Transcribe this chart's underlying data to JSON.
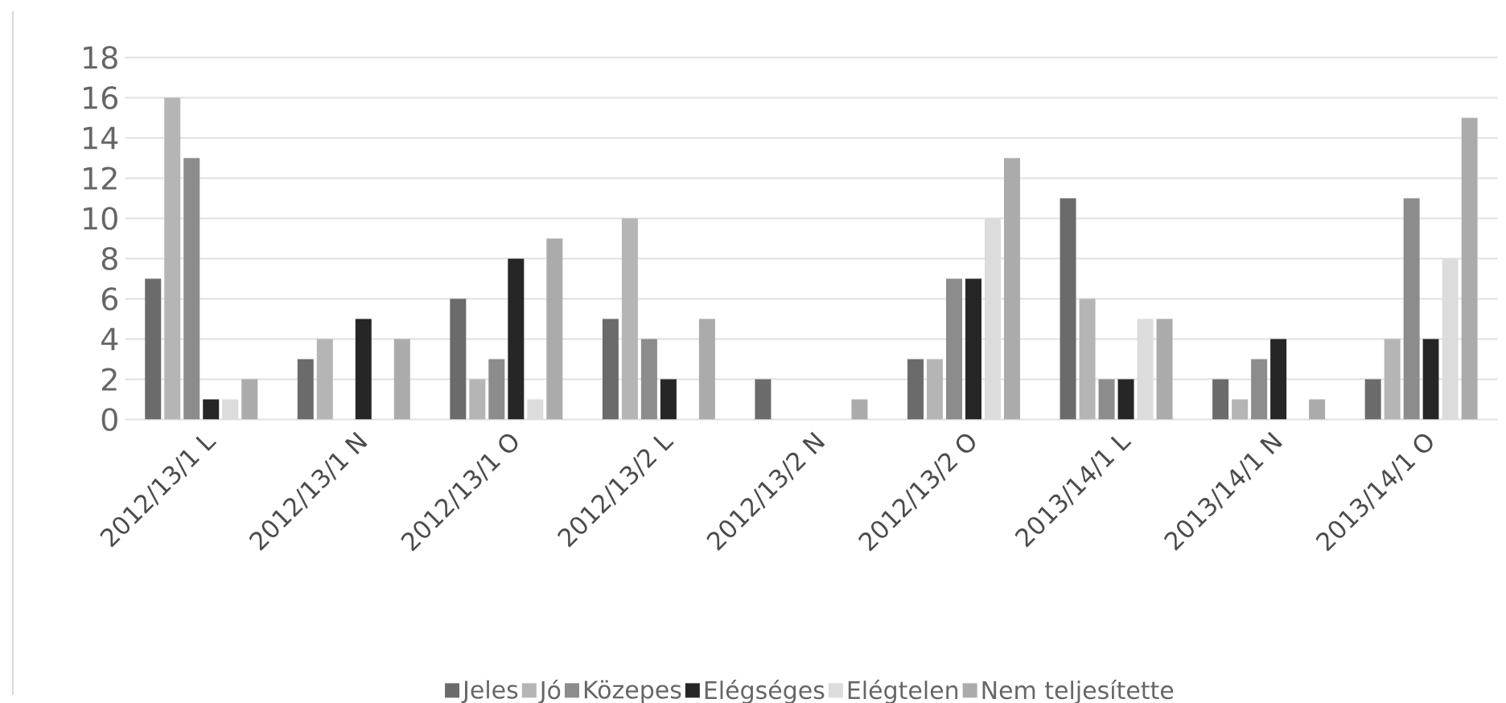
{
  "chart_data": {
    "type": "bar",
    "categories": [
      "2012/13/1 L",
      "2012/13/1 N",
      "2012/13/1 O",
      "2012/13/2 L",
      "2012/13/2 N",
      "2012/13/2 O",
      "2013/14/1 L",
      "2013/14/1 N",
      "2013/14/1 O"
    ],
    "series": [
      {
        "name": "Jeles",
        "color": "#6b6b6b",
        "values": [
          7,
          3,
          6,
          5,
          2,
          3,
          11,
          2,
          2
        ]
      },
      {
        "name": "Jó",
        "color": "#b5b5b5",
        "values": [
          16,
          4,
          2,
          10,
          0,
          3,
          6,
          1,
          4
        ]
      },
      {
        "name": "Közepes",
        "color": "#8c8c8c",
        "values": [
          13,
          0,
          3,
          4,
          0,
          7,
          2,
          3,
          11
        ]
      },
      {
        "name": "Elégséges",
        "color": "#262626",
        "values": [
          1,
          5,
          8,
          2,
          0,
          7,
          2,
          4,
          4
        ]
      },
      {
        "name": "Elégtelen",
        "color": "#dcdcdc",
        "values": [
          1,
          0,
          1,
          0,
          0,
          10,
          5,
          0,
          8
        ]
      },
      {
        "name": "Nem teljesítette",
        "color": "#ababab",
        "values": [
          2,
          4,
          9,
          5,
          1,
          13,
          5,
          1,
          15
        ]
      }
    ],
    "ylim": [
      0,
      18
    ],
    "yticks": [
      0,
      2,
      4,
      6,
      8,
      10,
      12,
      14,
      16,
      18
    ],
    "grid": "y",
    "legend": "bottom"
  }
}
